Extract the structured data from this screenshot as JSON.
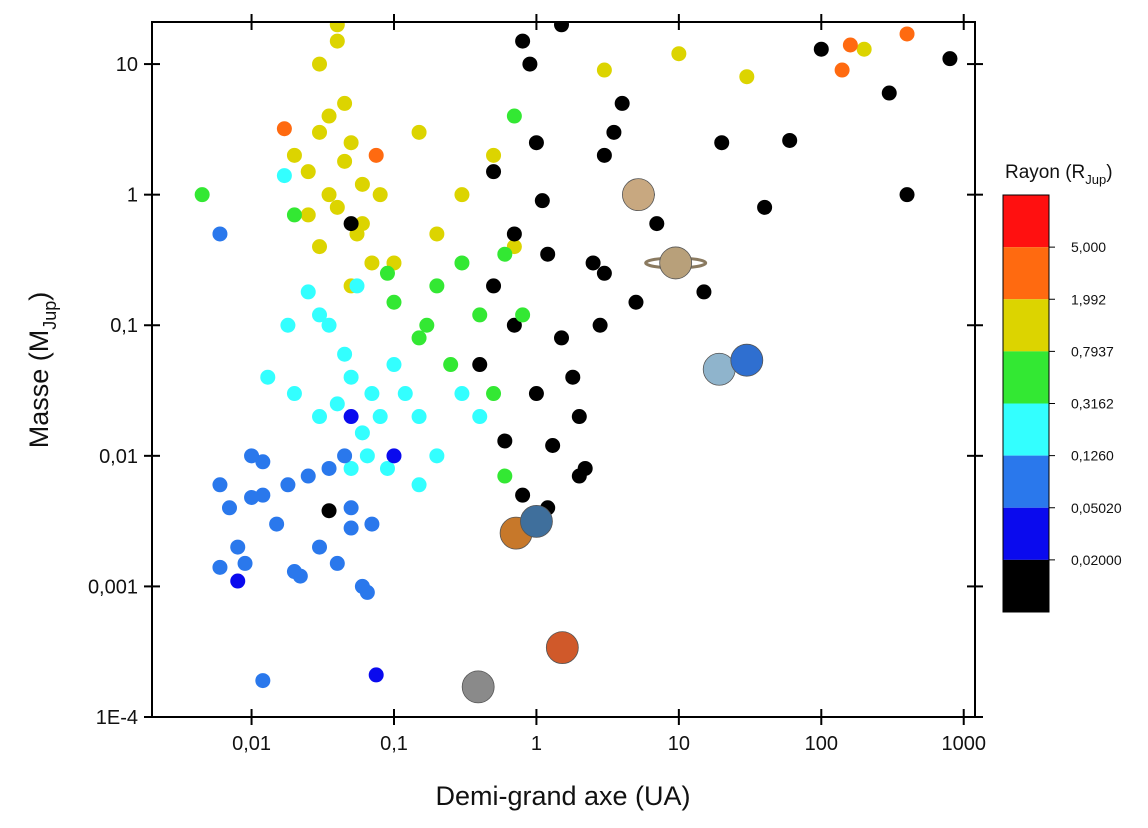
{
  "chart_data": {
    "type": "scatter",
    "xlabel": "Demi-grand axe (UA)",
    "ylabel": {
      "text": "Masse (M",
      "sub": "Jup",
      "end": ")"
    },
    "log_x": true,
    "log_y": true,
    "xlim": [
      0.002,
      1200
    ],
    "ylim": [
      0.0001,
      21
    ],
    "xticks": [
      {
        "value": 0.01,
        "label": "0,01"
      },
      {
        "value": 0.1,
        "label": "0,1"
      },
      1,
      10,
      100,
      1000
    ],
    "yticks": [
      {
        "value": 0.0001,
        "label": "1E-4"
      },
      {
        "value": 0.001,
        "label": "0,001"
      },
      {
        "value": 0.01,
        "label": "0,01"
      },
      {
        "value": 0.1,
        "label": "0,1"
      },
      1,
      10
    ],
    "colorbar": {
      "title": {
        "text": "Rayon (R",
        "sub": "Jup",
        "end": ")"
      },
      "levels": [
        {
          "value": 5,
          "label": "5,000"
        },
        {
          "value": 1.992,
          "label": "1,992"
        },
        {
          "value": 0.7937,
          "label": "0,7937"
        },
        {
          "value": 0.3162,
          "label": "0,3162"
        },
        {
          "value": 0.126,
          "label": "0,1260"
        },
        {
          "value": 0.0502,
          "label": "0,05020"
        },
        {
          "value": 0.02,
          "label": "0,02000"
        }
      ],
      "colors": [
        "#ff1010",
        "#ff6a10",
        "#dcd400",
        "#33e833",
        "#33ffff",
        "#2a78ec",
        "#0a0aee",
        "#000000"
      ]
    },
    "x": [
      0.02,
      0.025,
      0.03,
      0.035,
      0.04,
      0.045,
      0.05,
      0.055,
      0.06,
      0.07,
      0.03,
      0.04,
      0.05,
      0.025,
      0.035,
      0.045,
      0.06,
      0.08,
      0.1,
      0.15,
      0.2,
      0.3,
      0.5,
      0.7,
      3,
      10,
      30,
      200,
      0.04,
      0.03,
      0.4,
      0.5,
      0.6,
      0.7,
      0.8,
      1,
      1.2,
      1.5,
      2,
      2.5,
      3,
      4,
      5,
      6,
      7,
      0.9,
      1.1,
      1.3,
      1.8,
      2.2,
      2.8,
      3.5,
      0.5,
      0.8,
      1.5,
      2,
      3,
      1,
      0.7,
      1.2,
      20,
      40,
      60,
      100,
      300,
      400,
      800,
      0.05,
      0.035,
      15,
      0.02,
      0.03,
      0.04,
      0.05,
      0.06,
      0.07,
      0.08,
      0.1,
      0.12,
      0.15,
      0.2,
      0.035,
      0.045,
      0.055,
      0.065,
      0.09,
      0.025,
      0.018,
      0.013,
      0.15,
      0.3,
      0.4,
      0.017,
      0.03,
      0.05,
      0.006,
      0.007,
      0.008,
      0.009,
      0.01,
      0.012,
      0.015,
      0.02,
      0.025,
      0.03,
      0.04,
      0.05,
      0.06,
      0.065,
      0.07,
      0.006,
      0.012,
      0.018,
      0.022,
      0.035,
      0.045,
      0.05,
      0.012,
      0.006,
      0.01,
      0.008,
      0.075,
      0.1,
      0.05,
      0.0045,
      0.1,
      0.15,
      0.2,
      0.25,
      0.3,
      0.4,
      0.5,
      0.6,
      0.7,
      0.8,
      0.17,
      0.02,
      0.09,
      0.6,
      0.017,
      0.075,
      140,
      160,
      400
    ],
    "y": [
      2,
      1.5,
      3,
      1,
      0.8,
      5,
      2.5,
      0.5,
      1.2,
      0.3,
      10,
      20,
      0.2,
      0.7,
      4,
      1.8,
      0.6,
      1,
      0.3,
      3,
      0.5,
      1,
      2,
      0.4,
      9,
      12,
      8,
      13,
      15,
      0.4,
      0.05,
      0.2,
      0.013,
      0.5,
      0.005,
      0.03,
      0.004,
      0.08,
      0.02,
      0.3,
      2,
      5,
      0.15,
      1,
      0.6,
      10,
      0.9,
      0.012,
      0.04,
      0.008,
      0.1,
      3,
      1.5,
      15,
      20,
      0.007,
      0.25,
      2.5,
      0.1,
      0.35,
      2.5,
      0.8,
      2.6,
      13,
      6,
      1,
      11,
      0.6,
      0.0038,
      0.18,
      0.03,
      0.02,
      0.025,
      0.04,
      0.015,
      0.03,
      0.02,
      0.05,
      0.03,
      0.02,
      0.01,
      0.1,
      0.06,
      0.2,
      0.01,
      0.008,
      0.18,
      0.1,
      0.04,
      0.006,
      0.03,
      0.02,
      1.4,
      0.12,
      0.008,
      0.006,
      0.004,
      0.002,
      0.0015,
      0.01,
      0.005,
      0.003,
      0.0013,
      0.007,
      0.002,
      0.0015,
      0.004,
      0.001,
      0.0009,
      0.003,
      0.0014,
      0.009,
      0.006,
      0.0012,
      0.008,
      0.01,
      0.0028,
      0.00019,
      0.5,
      0.0048,
      0.0011,
      0.00021,
      0.01,
      0.02,
      1,
      0.15,
      0.08,
      0.2,
      0.05,
      0.3,
      0.12,
      0.03,
      0.35,
      4,
      0.12,
      0.1,
      0.7,
      0.25,
      0.007,
      3.2,
      2,
      9,
      14,
      17
    ],
    "r": [
      1.2,
      1.2,
      1.2,
      1.2,
      1.2,
      1.2,
      1.2,
      1.2,
      1.2,
      1.2,
      1.2,
      1.2,
      1.2,
      1.2,
      1.2,
      1.2,
      1.2,
      1.2,
      1.2,
      1.2,
      1.2,
      1.2,
      1.2,
      1.2,
      1.2,
      1.2,
      1.2,
      1.2,
      1.2,
      1.2,
      0.01,
      0.01,
      0.01,
      0.01,
      0.01,
      0.01,
      0.01,
      0.01,
      0.01,
      0.01,
      0.01,
      0.01,
      0.01,
      0.01,
      0.01,
      0.01,
      0.01,
      0.01,
      0.01,
      0.01,
      0.01,
      0.01,
      0.01,
      0.01,
      0.01,
      0.01,
      0.01,
      0.01,
      0.01,
      0.01,
      0.01,
      0.01,
      0.01,
      0.01,
      0.01,
      0.01,
      0.01,
      0.01,
      0.01,
      0.01,
      0.2,
      0.2,
      0.2,
      0.2,
      0.2,
      0.2,
      0.2,
      0.2,
      0.2,
      0.2,
      0.2,
      0.2,
      0.2,
      0.2,
      0.2,
      0.2,
      0.2,
      0.2,
      0.2,
      0.2,
      0.2,
      0.2,
      0.2,
      0.2,
      0.2,
      0.08,
      0.08,
      0.08,
      0.08,
      0.08,
      0.08,
      0.08,
      0.08,
      0.08,
      0.08,
      0.08,
      0.08,
      0.08,
      0.08,
      0.08,
      0.08,
      0.08,
      0.08,
      0.08,
      0.08,
      0.08,
      0.08,
      0.08,
      0.08,
      0.08,
      0.03,
      0.03,
      0.03,
      0.03,
      0.5,
      0.5,
      0.5,
      0.5,
      0.5,
      0.5,
      0.5,
      0.5,
      0.5,
      0.5,
      0.5,
      0.5,
      0.5,
      0.5,
      0.5,
      3,
      3,
      3,
      3,
      3
    ],
    "solar_system": {
      "x": [
        0.39,
        0.72,
        1,
        1.52,
        5.2,
        9.5,
        19.2,
        30
      ],
      "y": [
        0.00017,
        0.00256,
        0.00315,
        0.00034,
        1,
        0.3,
        0.046,
        0.054
      ],
      "colors": [
        "#8a8a8a",
        "#c7782a",
        "#3f6f9c",
        "#d0592a",
        "#c8a880",
        "#b8a07a",
        "#8fb4cc",
        "#2f6fd0"
      ]
    }
  }
}
